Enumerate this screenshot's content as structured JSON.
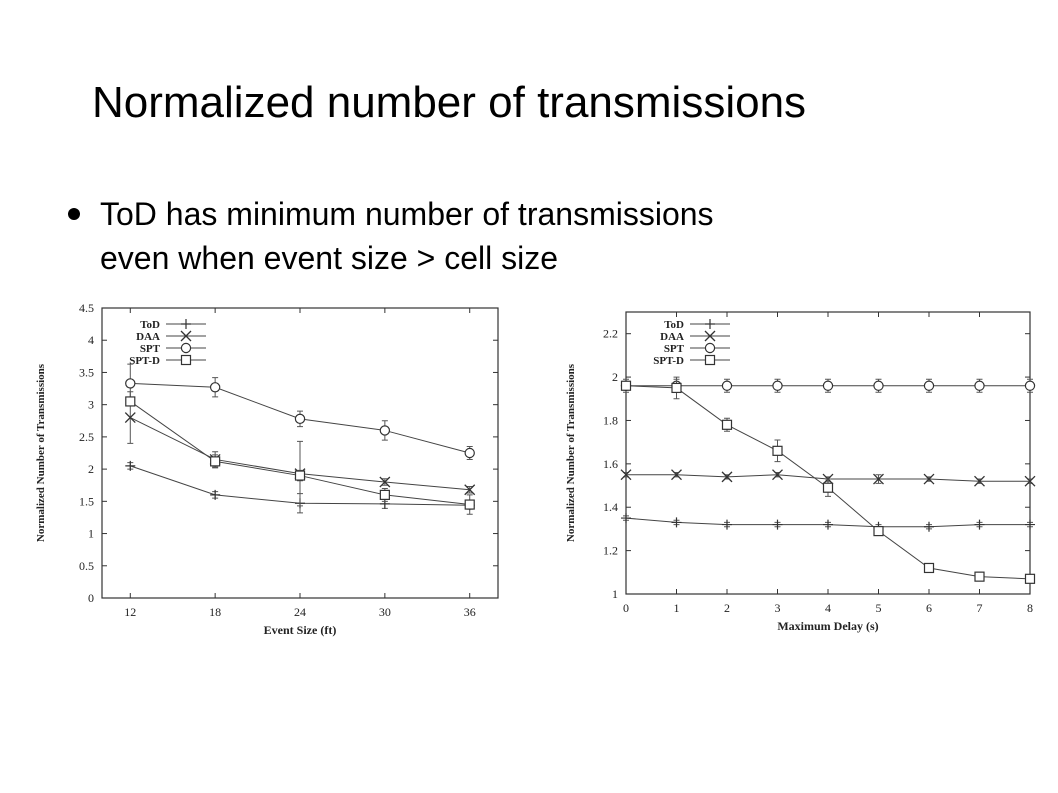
{
  "slide": {
    "title": "Normalized number of transmissions",
    "bullets": [
      "ToD has minimum number of transmissions\neven when event size > cell size"
    ]
  },
  "chart_data": [
    {
      "type": "line",
      "xlabel": "Event Size (ft)",
      "ylabel": "Normalized Number of Transmissions",
      "x": [
        12,
        18,
        24,
        30,
        36
      ],
      "xticks": [
        "12",
        "18",
        "24",
        "30",
        "36"
      ],
      "yticks": [
        "0",
        "0.5",
        "1",
        "1.5",
        "2",
        "2.5",
        "3",
        "3.5",
        "4",
        "4.5"
      ],
      "xlim": [
        10,
        38
      ],
      "ylim": [
        0,
        4.5
      ],
      "legend_position": "top-left",
      "series": [
        {
          "name": "ToD",
          "marker": "plus",
          "values": [
            2.05,
            1.6,
            1.47,
            1.46,
            1.44
          ],
          "err": [
            0.05,
            0.05,
            0.15,
            0.07,
            0.06
          ]
        },
        {
          "name": "DAA",
          "marker": "cross",
          "values": [
            2.8,
            2.15,
            1.93,
            1.8,
            1.68
          ],
          "err": [
            0.4,
            0.12,
            0.5,
            0.05,
            0.05
          ]
        },
        {
          "name": "SPT",
          "marker": "circle",
          "values": [
            3.33,
            3.27,
            2.78,
            2.6,
            2.25
          ],
          "err": [
            0.3,
            0.15,
            0.12,
            0.15,
            0.1
          ]
        },
        {
          "name": "SPT-D",
          "marker": "square",
          "values": [
            3.05,
            2.12,
            1.9,
            1.6,
            1.45
          ],
          "err": [
            0.05,
            0.1,
            0.08,
            0.1,
            0.15
          ]
        }
      ]
    },
    {
      "type": "line",
      "xlabel": "Maximum Delay (s)",
      "ylabel": "Normalized Number of Transmissions",
      "x": [
        0,
        1,
        2,
        3,
        4,
        5,
        6,
        7,
        8
      ],
      "xticks": [
        "0",
        "1",
        "2",
        "3",
        "4",
        "5",
        "6",
        "7",
        "8"
      ],
      "yticks": [
        "1",
        "1.2",
        "1.4",
        "1.6",
        "1.8",
        "2",
        "2.2"
      ],
      "xlim": [
        0,
        8
      ],
      "ylim": [
        1,
        2.3
      ],
      "legend_position": "top-left",
      "series": [
        {
          "name": "ToD",
          "marker": "plus",
          "values": [
            1.35,
            1.33,
            1.32,
            1.32,
            1.32,
            1.31,
            1.31,
            1.32,
            1.32
          ],
          "err": [
            0.01,
            0.01,
            0.01,
            0.01,
            0.01,
            0.01,
            0.01,
            0.01,
            0.01
          ]
        },
        {
          "name": "DAA",
          "marker": "cross",
          "values": [
            1.55,
            1.55,
            1.54,
            1.55,
            1.53,
            1.53,
            1.53,
            1.52,
            1.52
          ],
          "err": [
            0.01,
            0.01,
            0.01,
            0.01,
            0.01,
            0.02,
            0.01,
            0.01,
            0.01
          ]
        },
        {
          "name": "SPT",
          "marker": "circle",
          "values": [
            1.96,
            1.96,
            1.96,
            1.96,
            1.96,
            1.96,
            1.96,
            1.96,
            1.96
          ],
          "err": [
            0.03,
            0.03,
            0.03,
            0.03,
            0.03,
            0.03,
            0.03,
            0.03,
            0.03
          ]
        },
        {
          "name": "SPT-D",
          "marker": "square",
          "values": [
            1.96,
            1.95,
            1.78,
            1.66,
            1.49,
            1.29,
            1.12,
            1.08,
            1.07
          ],
          "err": [
            0.01,
            0.05,
            0.03,
            0.05,
            0.04,
            0.01,
            0.02,
            0.02,
            0.01
          ]
        }
      ]
    }
  ]
}
